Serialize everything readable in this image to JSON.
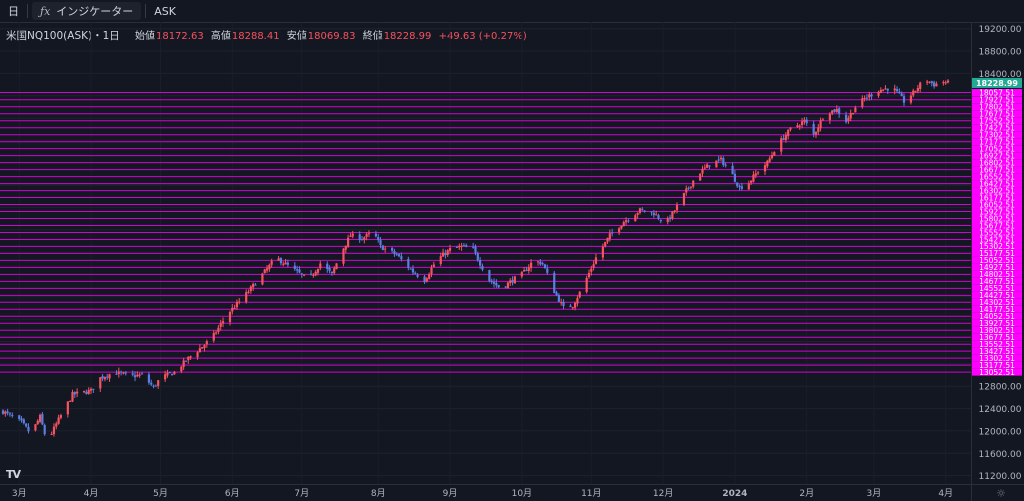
{
  "toolbar": {
    "interval_label": "日",
    "indicator_label": "インジケーター",
    "price_type_label": "ASK"
  },
  "legend": {
    "symbol": "米国NQ100(ASK)・1日",
    "open_label": "始値",
    "open": "18172.63",
    "high_label": "高値",
    "high": "18288.41",
    "low_label": "安値",
    "low": "18069.83",
    "close_label": "終値",
    "close": "18228.99",
    "change": "+49.63 (+0.27%)"
  },
  "icons": {
    "logo": "tradingview-logo-icon",
    "settings": "gear-icon"
  },
  "colors": {
    "background": "#131722",
    "up": "#f7525f",
    "down": "#5b7fe0",
    "level_line": "#d400d4",
    "level_label_bg": "#ff00ff",
    "last_price_bg": "#22ab94",
    "axis_text": "#b2b5be"
  },
  "chart_data": {
    "type": "candlestick",
    "y_axis": {
      "ylim": [
        11050,
        19320
      ],
      "ticks": [
        11200,
        11600,
        12000,
        12400,
        12800,
        13200,
        13600,
        14000,
        14400,
        14800,
        15200,
        15600,
        16000,
        16400,
        16800,
        17200,
        17600,
        18000,
        18400,
        18800,
        19200
      ],
      "tick_labels": [
        "11200.00",
        "11600.00",
        "12000.00",
        "12400.00",
        "12800.00",
        "",
        "",
        "",
        "",
        "",
        "",
        "",
        "",
        "",
        "",
        "",
        "",
        "",
        "18400.00",
        "18800.00",
        "19200.00"
      ]
    },
    "x_axis": {
      "labels": [
        "3月",
        "4月",
        "5月",
        "6月",
        "7月",
        "8月",
        "9月",
        "10月",
        "11月",
        "12月",
        "2024",
        "2月",
        "3月",
        "4月"
      ],
      "label_days": [
        7,
        38,
        68,
        99,
        129,
        162,
        193,
        224,
        254,
        285,
        316,
        347,
        376,
        407
      ]
    },
    "last_price": 18228.99,
    "level_lines": [
      18057.51,
      17927.51,
      17802.51,
      17677.51,
      17552.51,
      17427.51,
      17302.51,
      17177.51,
      17052.51,
      16927.51,
      16802.51,
      16677.51,
      16552.51,
      16427.51,
      16302.51,
      16177.51,
      16052.51,
      15927.51,
      15802.51,
      15677.51,
      15552.51,
      15427.51,
      15302.51,
      15177.51,
      15052.51,
      14927.51,
      14802.51,
      14677.51,
      14552.51,
      14427.51,
      14302.51,
      14177.51,
      14052.51,
      13927.51,
      13802.51,
      13677.51,
      13552.51,
      13427.51,
      13302.51,
      13177.51,
      13052.51
    ],
    "keypoints": [
      [
        0,
        12350
      ],
      [
        8,
        12150
      ],
      [
        12,
        11950
      ],
      [
        16,
        12250
      ],
      [
        19,
        11800
      ],
      [
        24,
        12200
      ],
      [
        30,
        12650
      ],
      [
        38,
        12720
      ],
      [
        42,
        12950
      ],
      [
        48,
        13050
      ],
      [
        55,
        12980
      ],
      [
        60,
        13000
      ],
      [
        65,
        12780
      ],
      [
        68,
        12950
      ],
      [
        74,
        13050
      ],
      [
        80,
        13300
      ],
      [
        90,
        13650
      ],
      [
        97,
        14100
      ],
      [
        104,
        14400
      ],
      [
        112,
        14800
      ],
      [
        118,
        15100
      ],
      [
        125,
        14900
      ],
      [
        132,
        14700
      ],
      [
        137,
        15000
      ],
      [
        142,
        14800
      ],
      [
        146,
        15200
      ],
      [
        150,
        15500
      ],
      [
        155,
        15450
      ],
      [
        160,
        15550
      ],
      [
        163,
        15300
      ],
      [
        170,
        15150
      ],
      [
        177,
        14850
      ],
      [
        182,
        14700
      ],
      [
        187,
        15050
      ],
      [
        193,
        15250
      ],
      [
        198,
        15300
      ],
      [
        203,
        15250
      ],
      [
        206,
        15000
      ],
      [
        210,
        14700
      ],
      [
        215,
        14550
      ],
      [
        220,
        14700
      ],
      [
        224,
        14800
      ],
      [
        229,
        15050
      ],
      [
        233,
        15000
      ],
      [
        238,
        14500
      ],
      [
        242,
        14200
      ],
      [
        246,
        14250
      ],
      [
        250,
        14550
      ],
      [
        256,
        15100
      ],
      [
        262,
        15500
      ],
      [
        268,
        15750
      ],
      [
        275,
        15950
      ],
      [
        281,
        15900
      ],
      [
        286,
        15700
      ],
      [
        290,
        15950
      ],
      [
        295,
        16300
      ],
      [
        300,
        16600
      ],
      [
        306,
        16800
      ],
      [
        310,
        16850
      ],
      [
        314,
        16650
      ],
      [
        318,
        16350
      ],
      [
        322,
        16450
      ],
      [
        326,
        16650
      ],
      [
        330,
        16800
      ],
      [
        334,
        17100
      ],
      [
        340,
        17400
      ],
      [
        346,
        17550
      ],
      [
        350,
        17300
      ],
      [
        355,
        17700
      ],
      [
        360,
        17750
      ],
      [
        364,
        17550
      ],
      [
        368,
        17800
      ],
      [
        372,
        17950
      ],
      [
        378,
        18100
      ],
      [
        384,
        18150
      ],
      [
        389,
        17900
      ],
      [
        393,
        18050
      ],
      [
        398,
        18300
      ],
      [
        402,
        18200
      ],
      [
        406,
        18250
      ],
      [
        408,
        18229
      ]
    ],
    "total_days": 408
  }
}
